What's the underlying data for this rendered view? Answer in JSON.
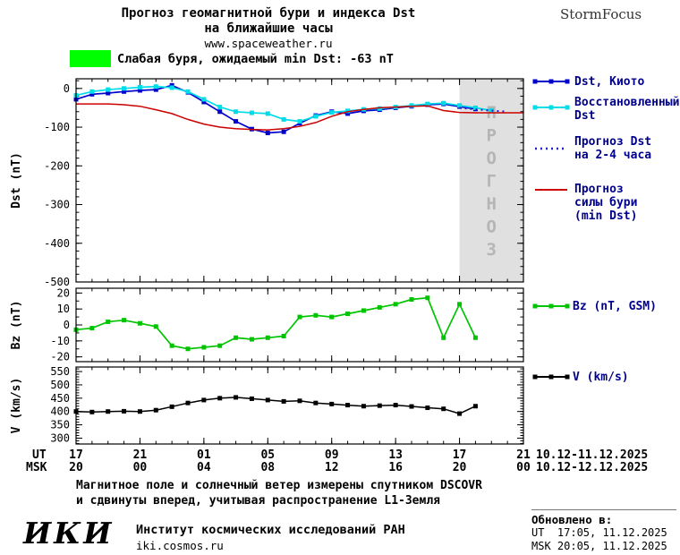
{
  "colors": {
    "alert_green": "#00ff00",
    "forecast_region": "#e0e0e0",
    "watermark": "#b5b5b5",
    "legend_text": "#00008b"
  },
  "header": {
    "title_line1": "Прогноз геомагнитной бури и индекса Dst",
    "title_line2": "на ближайшие часы",
    "website": "www.spaceweather.ru",
    "brand": "StormFocus"
  },
  "alert": {
    "text": "Слабая буря, ожидаемый min Dst: -63 nT"
  },
  "forecast_watermark": "ПРОГНОЗ",
  "legend": {
    "dst_kyoto": "Dst, Киото",
    "dst_restored": "Восстановленный\nDst",
    "dst_forecast": "Прогноз Dst\nна 2-4 часа",
    "storm_forecast": "Прогноз\nсилы бури\n(min Dst)",
    "bz": "Bz (nT, GSM)",
    "v": "V (km/s)"
  },
  "xaxis": {
    "ut_label": "UT",
    "msk_label": "MSK",
    "ut_ticks": [
      "17",
      "21",
      "01",
      "05",
      "09",
      "13",
      "17",
      "21"
    ],
    "msk_ticks": [
      "20",
      "00",
      "04",
      "08",
      "12",
      "16",
      "20",
      "00"
    ],
    "ut_range": "10.12-11.12.2025",
    "msk_range": "10.12-12.12.2025"
  },
  "footer": {
    "note_line1": "Магнитное поле и солнечный ветер измерены спутником DSCOVR",
    "note_line2": "и сдвинуты вперед, учитывая распространение L1-Земля",
    "iki_logo": "ИКИ",
    "institute": "Институт космических исследований РАН",
    "institute_site": "iki.cosmos.ru",
    "updated_header": "Обновлено в:",
    "updated_ut": "UT  17:05, 11.12.2025",
    "updated_msk": "MSK 20:05, 11.12.2025"
  },
  "chart_data": [
    {
      "type": "line",
      "panel": "dst",
      "ylabel": "Dst (nT)",
      "ylim": [
        -500,
        25
      ],
      "yticks": [
        0,
        -100,
        -200,
        -300,
        -400,
        -500
      ],
      "yminor": 20,
      "xlim": [
        0,
        28
      ],
      "xticks": [
        0,
        4,
        8,
        12,
        16,
        20,
        24,
        28
      ],
      "forecast_start_x": 24,
      "series": [
        {
          "name": "Dst, Киото",
          "color": "#0000cd",
          "marker": true,
          "x": [
            0,
            1,
            2,
            3,
            4,
            5,
            6,
            7,
            8,
            9,
            10,
            11,
            12,
            13,
            14,
            15,
            16,
            17,
            18,
            19,
            20,
            21,
            22,
            23,
            24,
            25
          ],
          "y": [
            -28,
            -15,
            -12,
            -8,
            -5,
            -3,
            8,
            -10,
            -35,
            -60,
            -85,
            -105,
            -115,
            -112,
            -90,
            -70,
            -60,
            -65,
            -58,
            -55,
            -50,
            -46,
            -42,
            -40,
            -47,
            -53
          ]
        },
        {
          "name": "Восстановленный Dst",
          "color": "#00dde8",
          "marker": true,
          "x": [
            0,
            1,
            2,
            3,
            4,
            5,
            6,
            7,
            8,
            9,
            10,
            11,
            12,
            13,
            14,
            15,
            16,
            17,
            18,
            19,
            20,
            21,
            22,
            23,
            24,
            25,
            26
          ],
          "y": [
            -18,
            -8,
            -3,
            0,
            3,
            5,
            2,
            -8,
            -28,
            -48,
            -60,
            -63,
            -65,
            -80,
            -85,
            -72,
            -62,
            -58,
            -54,
            -52,
            -48,
            -44,
            -40,
            -38,
            -44,
            -50,
            -57
          ]
        },
        {
          "name": "Прогноз Dst на 2-4 часа",
          "color": "#2020cd",
          "marker": false,
          "dash": "2 4",
          "width": 2,
          "x": [
            24,
            25,
            26,
            27
          ],
          "y": [
            -50,
            -54,
            -57,
            -60
          ]
        },
        {
          "name": "Прогноз силы бури (min Dst)",
          "color": "#cd0000",
          "marker": false,
          "width": 1.5,
          "x": [
            0,
            1,
            2,
            3,
            4,
            5,
            6,
            7,
            8,
            9,
            10,
            11,
            12,
            13,
            14,
            15,
            16,
            17,
            18,
            19,
            20,
            21,
            22,
            23,
            24,
            25,
            26,
            27,
            28
          ],
          "y": [
            -40,
            -40,
            -40,
            -42,
            -46,
            -55,
            -65,
            -80,
            -92,
            -100,
            -104,
            -106,
            -107,
            -104,
            -98,
            -88,
            -72,
            -60,
            -54,
            -50,
            -48,
            -46,
            -45,
            -57,
            -62,
            -63,
            -63,
            -63,
            -63
          ]
        }
      ]
    },
    {
      "type": "line",
      "panel": "bz",
      "ylabel": "Bz (nT)",
      "ylim": [
        -23,
        23
      ],
      "yticks": [
        20,
        10,
        0,
        -10,
        -20
      ],
      "yminor": 5,
      "xlim": [
        0,
        28
      ],
      "xticks": [
        0,
        4,
        8,
        12,
        16,
        20,
        24,
        28
      ],
      "series": [
        {
          "name": "Bz (nT, GSM)",
          "color": "#00c400",
          "marker": true,
          "x": [
            0,
            1,
            2,
            3,
            4,
            5,
            6,
            7,
            8,
            9,
            10,
            11,
            12,
            13,
            14,
            15,
            16,
            17,
            18,
            19,
            20,
            21,
            22,
            23,
            24,
            25
          ],
          "y": [
            -3,
            -2,
            2,
            3,
            1,
            -1,
            -13,
            -15,
            -14,
            -13,
            -8,
            -9,
            -8,
            -7,
            5,
            6,
            5,
            7,
            9,
            11,
            13,
            16,
            17,
            -8,
            13,
            -8
          ]
        }
      ]
    },
    {
      "type": "line",
      "panel": "v",
      "ylabel": "V (km/s)",
      "ylim": [
        278,
        567
      ],
      "yticks": [
        550,
        500,
        450,
        400,
        350,
        300
      ],
      "yminor": 10,
      "xlim": [
        0,
        28
      ],
      "xticks": [
        0,
        4,
        8,
        12,
        16,
        20,
        24,
        28
      ],
      "series": [
        {
          "name": "V (km/s)",
          "color": "#000000",
          "marker": true,
          "width": 1.5,
          "x": [
            0,
            1,
            2,
            3,
            4,
            5,
            6,
            7,
            8,
            9,
            10,
            11,
            12,
            13,
            14,
            15,
            16,
            17,
            18,
            19,
            20,
            21,
            22,
            23,
            24,
            25
          ],
          "y": [
            400,
            398,
            400,
            401,
            400,
            405,
            418,
            432,
            443,
            450,
            453,
            448,
            443,
            438,
            440,
            432,
            428,
            424,
            420,
            422,
            424,
            419,
            414,
            410,
            392,
            420
          ]
        }
      ]
    }
  ]
}
